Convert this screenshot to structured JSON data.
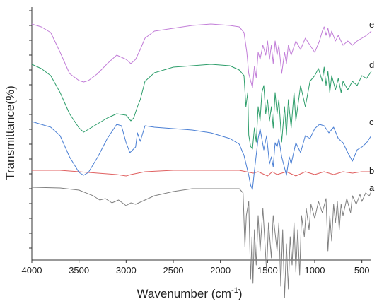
{
  "chart_data": {
    "type": "line",
    "title": "",
    "xlabel_main": "Wavenumber (cm",
    "xlabel_sup": "-1",
    "xlabel_close": ")",
    "ylabel": "Transmittance(%)",
    "xlim": [
      4000,
      400
    ],
    "x_reversed": true,
    "y_ticks_labeled": false,
    "x_ticks": [
      4000,
      3500,
      3000,
      2500,
      2000,
      1500,
      1000,
      500
    ],
    "x_tick_labels": [
      "4000",
      "3500",
      "3000",
      "2500",
      "2000",
      "1500",
      "1000",
      "500"
    ],
    "grid": false,
    "legend": "series labels at right end of each trace",
    "series": [
      {
        "name": "a",
        "color": "#808080",
        "offset": 0.0,
        "points": [
          [
            4000,
            0
          ],
          [
            3700,
            -0.5
          ],
          [
            3500,
            -2
          ],
          [
            3350,
            -6
          ],
          [
            3280,
            -9
          ],
          [
            3220,
            -8
          ],
          [
            3150,
            -11
          ],
          [
            3080,
            -9
          ],
          [
            3000,
            -13
          ],
          [
            2950,
            -11
          ],
          [
            2900,
            -12
          ],
          [
            2800,
            -9
          ],
          [
            2700,
            -6
          ],
          [
            2500,
            -3
          ],
          [
            2300,
            -1
          ],
          [
            2000,
            -1
          ],
          [
            1800,
            -1
          ],
          [
            1760,
            -4
          ],
          [
            1740,
            -42
          ],
          [
            1725,
            -20
          ],
          [
            1700,
            -10
          ],
          [
            1680,
            -65
          ],
          [
            1665,
            -35
          ],
          [
            1655,
            -68
          ],
          [
            1640,
            -30
          ],
          [
            1620,
            -55
          ],
          [
            1600,
            -20
          ],
          [
            1580,
            -45
          ],
          [
            1550,
            -15
          ],
          [
            1510,
            -60
          ],
          [
            1490,
            -25
          ],
          [
            1460,
            -50
          ],
          [
            1440,
            -20
          ],
          [
            1400,
            -45
          ],
          [
            1380,
            -25
          ],
          [
            1360,
            -70
          ],
          [
            1340,
            -30
          ],
          [
            1320,
            -78
          ],
          [
            1300,
            -40
          ],
          [
            1280,
            -72
          ],
          [
            1260,
            -35
          ],
          [
            1240,
            -55
          ],
          [
            1220,
            -25
          ],
          [
            1200,
            -60
          ],
          [
            1180,
            -30
          ],
          [
            1160,
            -62
          ],
          [
            1140,
            -20
          ],
          [
            1110,
            -35
          ],
          [
            1090,
            -15
          ],
          [
            1060,
            -30
          ],
          [
            1040,
            -12
          ],
          [
            1000,
            -22
          ],
          [
            960,
            -10
          ],
          [
            920,
            -18
          ],
          [
            880,
            -8
          ],
          [
            860,
            -45
          ],
          [
            840,
            -20
          ],
          [
            820,
            -38
          ],
          [
            800,
            -12
          ],
          [
            780,
            -25
          ],
          [
            760,
            -10
          ],
          [
            740,
            -30
          ],
          [
            720,
            -12
          ],
          [
            700,
            -20
          ],
          [
            660,
            -8
          ],
          [
            620,
            -18
          ],
          [
            600,
            -6
          ],
          [
            560,
            -12
          ],
          [
            520,
            -5
          ],
          [
            500,
            -10
          ],
          [
            460,
            -4
          ],
          [
            420,
            -6
          ],
          [
            400,
            -3
          ]
        ]
      },
      {
        "name": "b",
        "color": "#e06060",
        "offset": 0.0,
        "points": [
          [
            4000,
            0
          ],
          [
            3700,
            0
          ],
          [
            3500,
            -1
          ],
          [
            3300,
            -2
          ],
          [
            3100,
            -3
          ],
          [
            3000,
            -4
          ],
          [
            2950,
            -3
          ],
          [
            2800,
            -1
          ],
          [
            2500,
            0
          ],
          [
            2000,
            0
          ],
          [
            1800,
            0
          ],
          [
            1650,
            -2
          ],
          [
            1600,
            -1
          ],
          [
            1500,
            -4
          ],
          [
            1450,
            -1
          ],
          [
            1400,
            -3
          ],
          [
            1300,
            -1
          ],
          [
            1200,
            -4
          ],
          [
            1100,
            -1
          ],
          [
            1000,
            -3
          ],
          [
            900,
            -1
          ],
          [
            800,
            -3
          ],
          [
            700,
            -1
          ],
          [
            600,
            -2
          ],
          [
            500,
            -1
          ],
          [
            400,
            -1
          ]
        ]
      },
      {
        "name": "c",
        "color": "#4a7fd4",
        "offset": 0.0,
        "points": [
          [
            4000,
            0
          ],
          [
            3900,
            -2
          ],
          [
            3800,
            -4
          ],
          [
            3700,
            -10
          ],
          [
            3600,
            -25
          ],
          [
            3500,
            -36
          ],
          [
            3450,
            -38
          ],
          [
            3400,
            -36
          ],
          [
            3300,
            -25
          ],
          [
            3200,
            -12
          ],
          [
            3100,
            -2
          ],
          [
            3050,
            -3
          ],
          [
            3000,
            -15
          ],
          [
            2960,
            -22
          ],
          [
            2930,
            -20
          ],
          [
            2900,
            -18
          ],
          [
            2880,
            -8
          ],
          [
            2850,
            -14
          ],
          [
            2800,
            -3
          ],
          [
            2700,
            -4
          ],
          [
            2500,
            -5
          ],
          [
            2300,
            -6
          ],
          [
            2100,
            -8
          ],
          [
            1900,
            -12
          ],
          [
            1800,
            -16
          ],
          [
            1750,
            -24
          ],
          [
            1700,
            -38
          ],
          [
            1680,
            -45
          ],
          [
            1660,
            -48
          ],
          [
            1640,
            -35
          ],
          [
            1600,
            -12
          ],
          [
            1580,
            -5
          ],
          [
            1540,
            -20
          ],
          [
            1510,
            -10
          ],
          [
            1480,
            -30
          ],
          [
            1460,
            -25
          ],
          [
            1440,
            -32
          ],
          [
            1420,
            -15
          ],
          [
            1400,
            -18
          ],
          [
            1380,
            -12
          ],
          [
            1350,
            -25
          ],
          [
            1300,
            -38
          ],
          [
            1270,
            -25
          ],
          [
            1250,
            -30
          ],
          [
            1200,
            -15
          ],
          [
            1150,
            -22
          ],
          [
            1100,
            -10
          ],
          [
            1050,
            -12
          ],
          [
            1000,
            -5
          ],
          [
            950,
            -2
          ],
          [
            900,
            -3
          ],
          [
            850,
            -8
          ],
          [
            800,
            -4
          ],
          [
            750,
            -12
          ],
          [
            700,
            -15
          ],
          [
            650,
            -22
          ],
          [
            600,
            -28
          ],
          [
            550,
            -20
          ],
          [
            500,
            -18
          ],
          [
            450,
            -15
          ],
          [
            400,
            -10
          ]
        ]
      },
      {
        "name": "d",
        "color": "#2e9e6b",
        "offset": 0.0,
        "points": [
          [
            4000,
            0
          ],
          [
            3900,
            -3
          ],
          [
            3800,
            -8
          ],
          [
            3700,
            -20
          ],
          [
            3600,
            -35
          ],
          [
            3500,
            -45
          ],
          [
            3450,
            -48
          ],
          [
            3400,
            -46
          ],
          [
            3300,
            -42
          ],
          [
            3200,
            -38
          ],
          [
            3100,
            -35
          ],
          [
            3000,
            -36
          ],
          [
            2950,
            -40
          ],
          [
            2920,
            -38
          ],
          [
            2880,
            -30
          ],
          [
            2850,
            -25
          ],
          [
            2800,
            -12
          ],
          [
            2700,
            -6
          ],
          [
            2500,
            -2
          ],
          [
            2300,
            -1
          ],
          [
            2100,
            0
          ],
          [
            1900,
            -1
          ],
          [
            1800,
            -4
          ],
          [
            1750,
            -8
          ],
          [
            1730,
            -30
          ],
          [
            1710,
            -20
          ],
          [
            1700,
            -50
          ],
          [
            1680,
            -58
          ],
          [
            1660,
            -60
          ],
          [
            1640,
            -45
          ],
          [
            1620,
            -55
          ],
          [
            1600,
            -30
          ],
          [
            1580,
            -40
          ],
          [
            1560,
            -20
          ],
          [
            1540,
            -15
          ],
          [
            1520,
            -35
          ],
          [
            1500,
            -25
          ],
          [
            1480,
            -40
          ],
          [
            1460,
            -30
          ],
          [
            1440,
            -45
          ],
          [
            1420,
            -20
          ],
          [
            1400,
            -35
          ],
          [
            1380,
            -25
          ],
          [
            1350,
            -55
          ],
          [
            1320,
            -30
          ],
          [
            1300,
            -50
          ],
          [
            1280,
            -25
          ],
          [
            1250,
            -45
          ],
          [
            1220,
            -20
          ],
          [
            1200,
            -40
          ],
          [
            1150,
            -15
          ],
          [
            1100,
            -30
          ],
          [
            1050,
            -12
          ],
          [
            1000,
            -8
          ],
          [
            960,
            -3
          ],
          [
            920,
            -12
          ],
          [
            900,
            -2
          ],
          [
            880,
            -15
          ],
          [
            860,
            -5
          ],
          [
            840,
            -20
          ],
          [
            820,
            -8
          ],
          [
            780,
            -18
          ],
          [
            750,
            -10
          ],
          [
            720,
            -20
          ],
          [
            700,
            -12
          ],
          [
            650,
            -18
          ],
          [
            600,
            -12
          ],
          [
            550,
            -15
          ],
          [
            500,
            -8
          ],
          [
            450,
            -10
          ],
          [
            400,
            -5
          ]
        ]
      },
      {
        "name": "e",
        "color": "#c27ed8",
        "offset": 0.0,
        "points": [
          [
            4000,
            0
          ],
          [
            3900,
            -2
          ],
          [
            3800,
            -6
          ],
          [
            3700,
            -20
          ],
          [
            3600,
            -35
          ],
          [
            3500,
            -40
          ],
          [
            3450,
            -41
          ],
          [
            3400,
            -40
          ],
          [
            3300,
            -35
          ],
          [
            3200,
            -28
          ],
          [
            3100,
            -22
          ],
          [
            3000,
            -25
          ],
          [
            2950,
            -28
          ],
          [
            2900,
            -25
          ],
          [
            2850,
            -18
          ],
          [
            2800,
            -10
          ],
          [
            2700,
            -5
          ],
          [
            2500,
            -3
          ],
          [
            2300,
            -1
          ],
          [
            2100,
            0
          ],
          [
            1900,
            -1
          ],
          [
            1800,
            -2
          ],
          [
            1750,
            -6
          ],
          [
            1720,
            -20
          ],
          [
            1700,
            -35
          ],
          [
            1680,
            -40
          ],
          [
            1660,
            -45
          ],
          [
            1640,
            -30
          ],
          [
            1620,
            -38
          ],
          [
            1600,
            -20
          ],
          [
            1580,
            -25
          ],
          [
            1550,
            -15
          ],
          [
            1520,
            -22
          ],
          [
            1500,
            -12
          ],
          [
            1480,
            -25
          ],
          [
            1460,
            -15
          ],
          [
            1440,
            -28
          ],
          [
            1420,
            -12
          ],
          [
            1400,
            -22
          ],
          [
            1380,
            -15
          ],
          [
            1350,
            -35
          ],
          [
            1320,
            -20
          ],
          [
            1300,
            -28
          ],
          [
            1280,
            -15
          ],
          [
            1250,
            -22
          ],
          [
            1200,
            -12
          ],
          [
            1150,
            -18
          ],
          [
            1100,
            -10
          ],
          [
            1050,
            -15
          ],
          [
            1000,
            -20
          ],
          [
            950,
            -12
          ],
          [
            920,
            -5
          ],
          [
            900,
            -2
          ],
          [
            880,
            -8
          ],
          [
            860,
            -3
          ],
          [
            840,
            -10
          ],
          [
            820,
            -5
          ],
          [
            780,
            -12
          ],
          [
            750,
            -8
          ],
          [
            700,
            -15
          ],
          [
            650,
            -12
          ],
          [
            600,
            -15
          ],
          [
            550,
            -12
          ],
          [
            500,
            -10
          ],
          [
            450,
            -8
          ],
          [
            400,
            -5
          ]
        ]
      }
    ]
  }
}
